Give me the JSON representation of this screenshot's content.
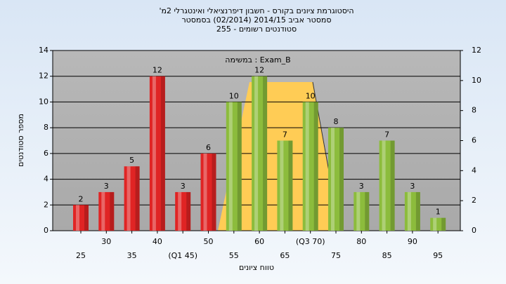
{
  "chart_data": {
    "type": "bar",
    "title": [
      "היסטוגרמת ציונים בקורס - חשבון דיפרנציאלי ואינטגרלי 2מ'",
      "סמסטר אביב 2014/15  (02/2014)  בסמסטר",
      "סטודנטים רשומים - 255"
    ],
    "annotation": "Exam_B : במשימה",
    "x_label": "טווח ציונים",
    "y_label": "מספר סטודנטים",
    "categories": [
      "25",
      "30",
      "35",
      "40",
      "(Q1 45)",
      "50",
      "55",
      "60",
      "65",
      "(Q3 70)",
      "75",
      "80",
      "85",
      "90",
      "95"
    ],
    "values": [
      2,
      3,
      5,
      12,
      3,
      6,
      10,
      12,
      7,
      10,
      8,
      3,
      7,
      3,
      1
    ],
    "colors": [
      "#e02424",
      "#e02424",
      "#e02424",
      "#e02424",
      "#e02424",
      "#e02424",
      "#8cbc3c",
      "#8cbc3c",
      "#8cbc3c",
      "#8cbc3c",
      "#8cbc3c",
      "#8cbc3c",
      "#8cbc3c",
      "#8cbc3c",
      "#8cbc3c"
    ],
    "ylim": [
      0,
      14
    ],
    "yticks": [
      0,
      2,
      4,
      6,
      8,
      10,
      12,
      14
    ],
    "y2lim": [
      0,
      12
    ],
    "y2ticks": [
      0,
      2,
      4,
      6,
      8,
      10,
      12
    ],
    "grid": true
  }
}
